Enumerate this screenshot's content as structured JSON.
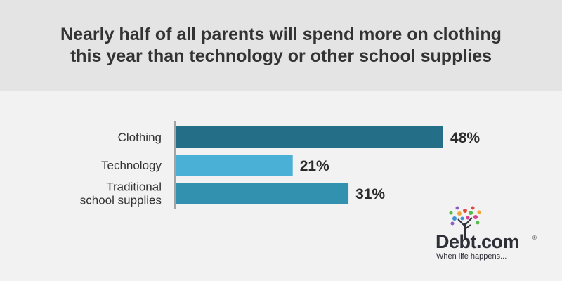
{
  "title": "Nearly half of all parents will spend more on clothing\nthis year than technology or other school supplies",
  "chart_data": {
    "type": "bar",
    "orientation": "horizontal",
    "title": "Nearly half of all parents will spend more on clothing this year than technology or other school supplies",
    "categories": [
      [
        "Clothing"
      ],
      [
        "Technology"
      ],
      [
        "Traditional",
        "school supplies"
      ]
    ],
    "values": [
      48,
      21,
      31
    ],
    "value_labels": [
      "48%",
      "21%",
      "31%"
    ],
    "unit": "%",
    "xlim": [
      0,
      100
    ],
    "colors": [
      "#256e87",
      "#4ab0d5",
      "#3391b0"
    ],
    "grid": false
  },
  "logo": {
    "name": "Debt.com",
    "reg_mark": "®",
    "tagline": "When life happens...",
    "icon": "tree-icon"
  }
}
